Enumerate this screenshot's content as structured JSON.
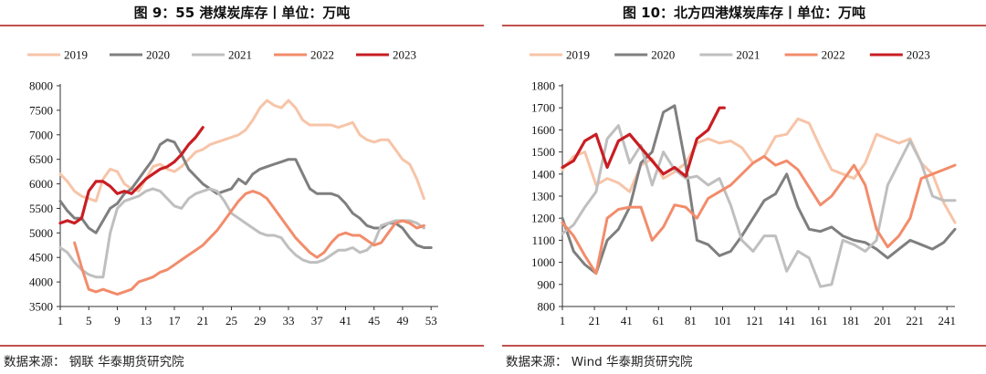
{
  "left": {
    "title": "图 9：55 港煤炭库存丨单位：万吨",
    "source": "数据来源：  钢联  华泰期货研究院",
    "chart_data": {
      "type": "line",
      "ylim": [
        3500,
        8000
      ],
      "yticks": [
        3500,
        4000,
        4500,
        5000,
        5500,
        6000,
        6500,
        7000,
        7500,
        8000
      ],
      "xlim": [
        1,
        54
      ],
      "xticks": [
        1,
        5,
        9,
        13,
        17,
        21,
        25,
        29,
        33,
        37,
        41,
        45,
        49,
        53
      ],
      "legend_position": "top",
      "series": [
        {
          "name": "2019",
          "color": "#f7c4a8",
          "width": 3,
          "x": [
            1,
            2,
            3,
            4,
            5,
            6,
            7,
            8,
            9,
            10,
            11,
            12,
            13,
            14,
            15,
            16,
            17,
            18,
            19,
            20,
            21,
            22,
            23,
            24,
            25,
            26,
            27,
            28,
            29,
            30,
            31,
            32,
            33,
            34,
            35,
            36,
            37,
            38,
            39,
            40,
            41,
            42,
            43,
            44,
            45,
            46,
            47,
            48,
            49,
            50,
            51,
            52
          ],
          "y": [
            6200,
            6050,
            5850,
            5750,
            5700,
            5650,
            6100,
            6300,
            6250,
            6000,
            5900,
            5850,
            6100,
            6350,
            6400,
            6300,
            6250,
            6350,
            6500,
            6650,
            6700,
            6800,
            6850,
            6900,
            6950,
            7000,
            7100,
            7300,
            7550,
            7700,
            7600,
            7550,
            7700,
            7550,
            7300,
            7200,
            7200,
            7200,
            7200,
            7150,
            7200,
            7250,
            7000,
            6900,
            6850,
            6900,
            6900,
            6700,
            6500,
            6400,
            6100,
            5700
          ]
        },
        {
          "name": "2020",
          "color": "#7f7f7f",
          "width": 3,
          "x": [
            1,
            2,
            3,
            4,
            5,
            6,
            7,
            8,
            9,
            10,
            11,
            12,
            13,
            14,
            15,
            16,
            17,
            18,
            19,
            20,
            21,
            22,
            23,
            24,
            25,
            26,
            27,
            28,
            29,
            30,
            31,
            32,
            33,
            34,
            35,
            36,
            37,
            38,
            39,
            40,
            41,
            42,
            43,
            44,
            45,
            46,
            47,
            48,
            49,
            50,
            51,
            52,
            53
          ],
          "y": [
            5650,
            5450,
            5300,
            5300,
            5100,
            5000,
            5250,
            5500,
            5600,
            5800,
            5900,
            6100,
            6300,
            6500,
            6800,
            6900,
            6850,
            6600,
            6300,
            6150,
            6000,
            5900,
            5800,
            5850,
            5900,
            6100,
            6000,
            6200,
            6300,
            6350,
            6400,
            6450,
            6500,
            6500,
            6200,
            5900,
            5800,
            5800,
            5800,
            5750,
            5600,
            5400,
            5300,
            5150,
            5100,
            5100,
            5200,
            5200,
            5100,
            4900,
            4750,
            4700,
            4700
          ]
        },
        {
          "name": "2021",
          "color": "#bfbfbf",
          "width": 3,
          "x": [
            1,
            2,
            3,
            4,
            5,
            6,
            7,
            8,
            9,
            10,
            11,
            12,
            13,
            14,
            15,
            16,
            17,
            18,
            19,
            20,
            21,
            22,
            23,
            24,
            25,
            26,
            27,
            28,
            29,
            30,
            31,
            32,
            33,
            34,
            35,
            36,
            37,
            38,
            39,
            40,
            41,
            42,
            43,
            44,
            45,
            46,
            47,
            48,
            49,
            50,
            51,
            52
          ],
          "y": [
            4700,
            4600,
            4400,
            4250,
            4150,
            4100,
            4100,
            5000,
            5500,
            5650,
            5700,
            5750,
            5850,
            5900,
            5850,
            5700,
            5550,
            5500,
            5700,
            5800,
            5850,
            5900,
            5850,
            5650,
            5400,
            5300,
            5200,
            5100,
            5000,
            4950,
            4950,
            4900,
            4700,
            4550,
            4450,
            4400,
            4400,
            4450,
            4550,
            4650,
            4650,
            4700,
            4600,
            4650,
            4800,
            5150,
            5200,
            5250,
            5250,
            5250,
            5200,
            5100
          ]
        },
        {
          "name": "2022",
          "color": "#f28c6b",
          "width": 3,
          "x": [
            3,
            4,
            5,
            6,
            7,
            8,
            9,
            10,
            11,
            12,
            13,
            14,
            15,
            16,
            17,
            18,
            19,
            20,
            21,
            22,
            23,
            24,
            25,
            26,
            27,
            28,
            29,
            30,
            31,
            32,
            33,
            34,
            35,
            36,
            37,
            38,
            39,
            40,
            41,
            42,
            43,
            44,
            45,
            46,
            47,
            48,
            49,
            50,
            51,
            52
          ],
          "y": [
            4800,
            4300,
            3850,
            3800,
            3850,
            3800,
            3750,
            3800,
            3850,
            4000,
            4050,
            4100,
            4200,
            4250,
            4350,
            4450,
            4550,
            4650,
            4750,
            4900,
            5050,
            5250,
            5450,
            5650,
            5800,
            5850,
            5800,
            5700,
            5500,
            5300,
            5100,
            4900,
            4750,
            4600,
            4500,
            4600,
            4800,
            4950,
            5000,
            4950,
            4950,
            4850,
            4750,
            4800,
            5000,
            5200,
            5250,
            5200,
            5100,
            5150
          ]
        },
        {
          "name": "2023",
          "color": "#c81e23",
          "width": 3.2,
          "x": [
            1,
            2,
            3,
            4,
            5,
            6,
            7,
            8,
            9,
            10,
            11,
            12,
            13,
            14,
            15,
            16,
            17,
            18,
            19,
            20,
            21
          ],
          "y": [
            5200,
            5250,
            5200,
            5300,
            5850,
            6050,
            6050,
            5950,
            5800,
            5850,
            5800,
            5950,
            6100,
            6200,
            6300,
            6350,
            6450,
            6600,
            6800,
            6950,
            7150
          ]
        }
      ]
    }
  },
  "right": {
    "title": "图 10：北方四港煤炭库存丨单位：万吨",
    "source": "数据来源：  Wind  华泰期货研究院",
    "chart_data": {
      "type": "line",
      "ylim": [
        800,
        1800
      ],
      "yticks": [
        800,
        900,
        1000,
        1100,
        1200,
        1300,
        1400,
        1500,
        1600,
        1700,
        1800
      ],
      "xlim": [
        1,
        246
      ],
      "xticks": [
        1,
        21,
        41,
        61,
        81,
        101,
        121,
        141,
        161,
        181,
        201,
        221,
        241
      ],
      "legend_position": "top",
      "series": [
        {
          "name": "2019",
          "color": "#f7c4a8",
          "width": 3,
          "x": [
            1,
            8,
            15,
            22,
            29,
            36,
            43,
            50,
            57,
            64,
            71,
            78,
            85,
            92,
            99,
            106,
            113,
            120,
            127,
            134,
            141,
            148,
            155,
            162,
            169,
            176,
            183,
            190,
            197,
            204,
            211,
            218,
            225,
            232,
            239,
            246
          ],
          "y": [
            1420,
            1480,
            1500,
            1350,
            1380,
            1360,
            1320,
            1440,
            1470,
            1380,
            1410,
            1450,
            1540,
            1560,
            1540,
            1550,
            1520,
            1450,
            1480,
            1570,
            1580,
            1650,
            1630,
            1520,
            1420,
            1400,
            1380,
            1450,
            1580,
            1560,
            1540,
            1560,
            1450,
            1400,
            1270,
            1180
          ]
        },
        {
          "name": "2020",
          "color": "#7f7f7f",
          "width": 3,
          "x": [
            1,
            8,
            15,
            22,
            29,
            36,
            43,
            50,
            57,
            64,
            71,
            78,
            85,
            92,
            99,
            106,
            113,
            120,
            127,
            134,
            141,
            148,
            155,
            162,
            169,
            176,
            183,
            190,
            197,
            204,
            211,
            218,
            225,
            232,
            239,
            246
          ],
          "y": [
            1200,
            1050,
            990,
            950,
            1100,
            1150,
            1250,
            1450,
            1500,
            1680,
            1710,
            1440,
            1100,
            1080,
            1030,
            1050,
            1120,
            1200,
            1280,
            1310,
            1400,
            1250,
            1150,
            1140,
            1160,
            1120,
            1100,
            1090,
            1060,
            1020,
            1060,
            1100,
            1080,
            1060,
            1090,
            1150
          ]
        },
        {
          "name": "2021",
          "color": "#bfbfbf",
          "width": 3,
          "x": [
            1,
            8,
            15,
            22,
            29,
            36,
            43,
            50,
            57,
            64,
            71,
            78,
            85,
            92,
            99,
            106,
            113,
            120,
            127,
            134,
            141,
            148,
            155,
            162,
            169,
            176,
            183,
            190,
            197,
            204,
            211,
            218,
            225,
            232,
            239,
            246
          ],
          "y": [
            1130,
            1170,
            1250,
            1320,
            1560,
            1620,
            1450,
            1530,
            1350,
            1500,
            1420,
            1380,
            1390,
            1350,
            1380,
            1260,
            1100,
            1050,
            1120,
            1120,
            960,
            1050,
            1020,
            890,
            900,
            1100,
            1080,
            1050,
            1100,
            1350,
            1450,
            1550,
            1450,
            1300,
            1280,
            1280
          ]
        },
        {
          "name": "2022",
          "color": "#f28c6b",
          "width": 3,
          "x": [
            1,
            8,
            15,
            22,
            29,
            36,
            43,
            50,
            57,
            64,
            71,
            78,
            85,
            92,
            99,
            106,
            113,
            120,
            127,
            134,
            141,
            148,
            155,
            162,
            169,
            176,
            183,
            190,
            197,
            204,
            211,
            218,
            225,
            232,
            239,
            246
          ],
          "y": [
            1180,
            1120,
            1030,
            950,
            1200,
            1240,
            1250,
            1250,
            1100,
            1160,
            1260,
            1250,
            1200,
            1290,
            1320,
            1350,
            1400,
            1450,
            1480,
            1440,
            1460,
            1420,
            1340,
            1260,
            1300,
            1370,
            1440,
            1350,
            1150,
            1070,
            1120,
            1200,
            1380,
            1400,
            1420,
            1440
          ]
        },
        {
          "name": "2023",
          "color": "#c81e23",
          "width": 3.2,
          "x": [
            1,
            8,
            15,
            22,
            29,
            36,
            43,
            50,
            57,
            64,
            71,
            78,
            85,
            92,
            99,
            102
          ],
          "y": [
            1430,
            1460,
            1550,
            1580,
            1430,
            1550,
            1580,
            1520,
            1460,
            1400,
            1430,
            1390,
            1560,
            1600,
            1700,
            1700
          ]
        }
      ]
    }
  }
}
